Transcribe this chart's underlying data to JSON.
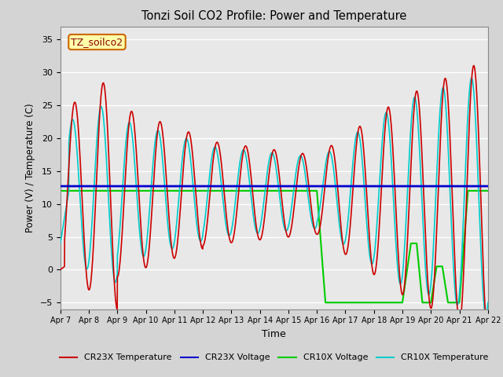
{
  "title": "Tonzi Soil CO2 Profile: Power and Temperature",
  "ylabel": "Power (V) / Temperature (C)",
  "xlabel": "Time",
  "annotation": "TZ_soilco2",
  "ylim": [
    -6,
    37
  ],
  "yticks": [
    -5,
    0,
    5,
    10,
    15,
    20,
    25,
    30,
    35
  ],
  "xlim": [
    0,
    15
  ],
  "xtick_labels": [
    "Apr 7",
    "Apr 8",
    "Apr 9",
    "Apr 10",
    "Apr 11",
    "Apr 12",
    "Apr 13",
    "Apr 14",
    "Apr 15",
    "Apr 16",
    "Apr 17",
    "Apr 18",
    "Apr 19",
    "Apr 20",
    "Apr 21",
    "Apr 22"
  ],
  "cr23x_temp_color": "#cc0000",
  "cr23x_volt_color": "#0000cc",
  "cr10x_volt_color": "#00cc00",
  "cr10x_temp_color": "#00cccc",
  "bg_color": "#e8e8e8",
  "cr23x_voltage": 12.7,
  "cr10x_voltage_flat": 12.0,
  "legend_labels": [
    "CR23X Temperature",
    "CR23X Voltage",
    "CR10X Voltage",
    "CR10X Temperature"
  ]
}
